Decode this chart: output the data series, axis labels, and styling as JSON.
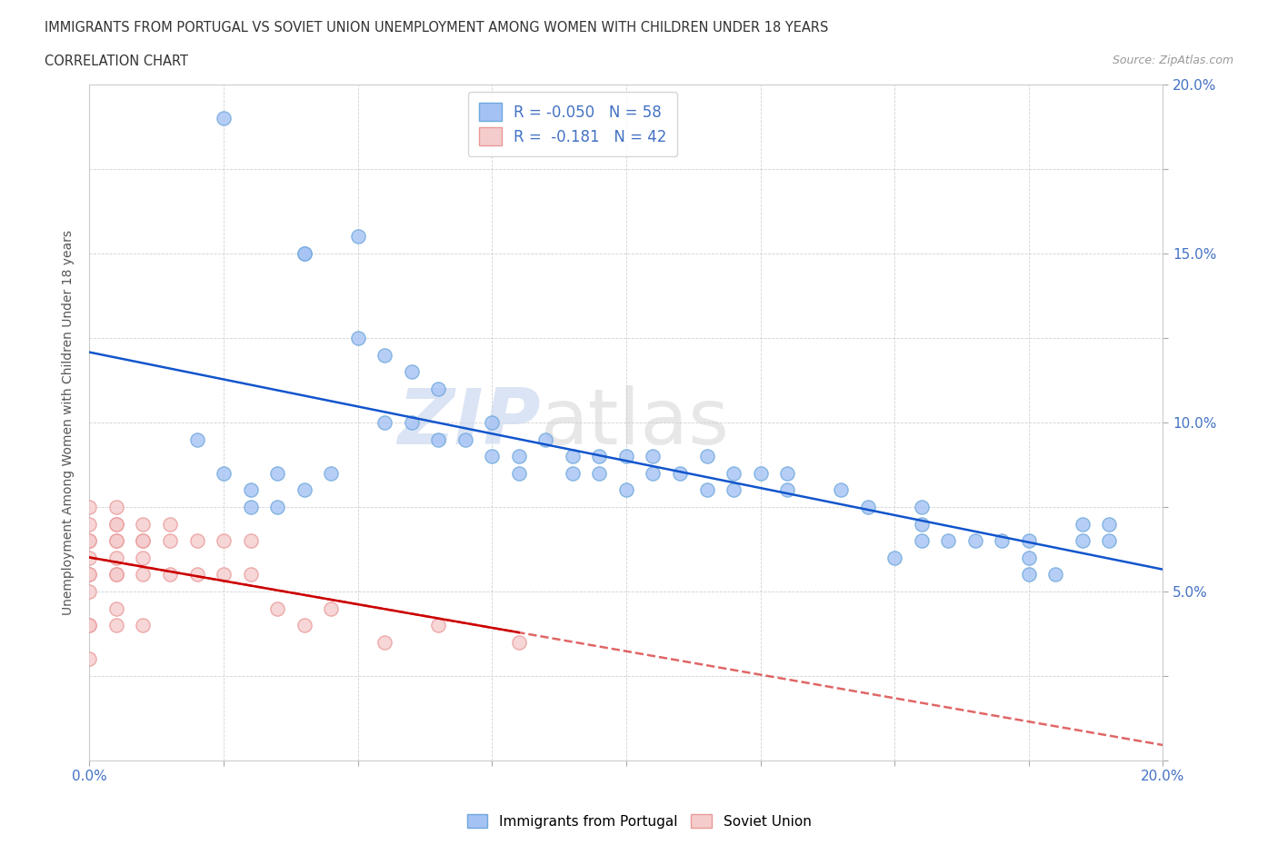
{
  "title_line1": "IMMIGRANTS FROM PORTUGAL VS SOVIET UNION UNEMPLOYMENT AMONG WOMEN WITH CHILDREN UNDER 18 YEARS",
  "title_line2": "CORRELATION CHART",
  "source_text": "Source: ZipAtlas.com",
  "ylabel": "Unemployment Among Women with Children Under 18 years",
  "xlim": [
    0.0,
    0.2
  ],
  "ylim": [
    0.0,
    0.2
  ],
  "x_ticks": [
    0.0,
    0.025,
    0.05,
    0.075,
    0.1,
    0.125,
    0.15,
    0.175,
    0.2
  ],
  "y_ticks": [
    0.0,
    0.025,
    0.05,
    0.075,
    0.1,
    0.125,
    0.15,
    0.175,
    0.2
  ],
  "x_tick_labels": [
    "0.0%",
    "",
    "",
    "",
    "",
    "",
    "",
    "",
    "20.0%"
  ],
  "y_tick_labels_right": [
    "",
    "",
    "5.0%",
    "",
    "10.0%",
    "",
    "15.0%",
    "",
    "20.0%"
  ],
  "portugal_color": "#a4c2f4",
  "portugal_edge": "#6fa8dc",
  "soviet_color": "#f4cccc",
  "soviet_edge": "#ea9999",
  "trendline_portugal_color": "#1155cc",
  "trendline_soviet_color": "#cc0000",
  "trendline_soviet_dash": "dashed",
  "portugal_R": -0.05,
  "portugal_N": 58,
  "soviet_R": -0.181,
  "soviet_N": 42,
  "watermark_zip": "ZIP",
  "watermark_atlas": "atlas",
  "portugal_scatter_x": [
    0.025,
    0.04,
    0.04,
    0.05,
    0.05,
    0.055,
    0.055,
    0.06,
    0.06,
    0.065,
    0.065,
    0.07,
    0.075,
    0.075,
    0.08,
    0.08,
    0.085,
    0.09,
    0.09,
    0.095,
    0.095,
    0.1,
    0.1,
    0.105,
    0.105,
    0.11,
    0.115,
    0.115,
    0.12,
    0.12,
    0.125,
    0.13,
    0.13,
    0.14,
    0.145,
    0.15,
    0.155,
    0.155,
    0.155,
    0.16,
    0.165,
    0.17,
    0.175,
    0.175,
    0.175,
    0.18,
    0.185,
    0.185,
    0.19,
    0.19,
    0.02,
    0.025,
    0.03,
    0.03,
    0.035,
    0.035,
    0.04,
    0.045
  ],
  "portugal_scatter_y": [
    0.19,
    0.15,
    0.15,
    0.125,
    0.155,
    0.1,
    0.12,
    0.1,
    0.115,
    0.095,
    0.11,
    0.095,
    0.09,
    0.1,
    0.085,
    0.09,
    0.095,
    0.085,
    0.09,
    0.085,
    0.09,
    0.08,
    0.09,
    0.085,
    0.09,
    0.085,
    0.08,
    0.09,
    0.085,
    0.08,
    0.085,
    0.085,
    0.08,
    0.08,
    0.075,
    0.06,
    0.065,
    0.07,
    0.075,
    0.065,
    0.065,
    0.065,
    0.055,
    0.06,
    0.065,
    0.055,
    0.065,
    0.07,
    0.065,
    0.07,
    0.095,
    0.085,
    0.075,
    0.08,
    0.085,
    0.075,
    0.08,
    0.085
  ],
  "soviet_scatter_x": [
    0.0,
    0.0,
    0.0,
    0.0,
    0.0,
    0.0,
    0.0,
    0.0,
    0.0,
    0.0,
    0.0,
    0.005,
    0.005,
    0.005,
    0.005,
    0.005,
    0.005,
    0.005,
    0.005,
    0.005,
    0.005,
    0.01,
    0.01,
    0.01,
    0.01,
    0.01,
    0.01,
    0.015,
    0.015,
    0.015,
    0.02,
    0.02,
    0.025,
    0.025,
    0.03,
    0.03,
    0.035,
    0.04,
    0.045,
    0.055,
    0.065,
    0.08
  ],
  "soviet_scatter_y": [
    0.03,
    0.04,
    0.04,
    0.05,
    0.055,
    0.055,
    0.06,
    0.065,
    0.065,
    0.07,
    0.075,
    0.04,
    0.045,
    0.055,
    0.055,
    0.06,
    0.065,
    0.065,
    0.07,
    0.07,
    0.075,
    0.04,
    0.055,
    0.06,
    0.065,
    0.065,
    0.07,
    0.055,
    0.065,
    0.07,
    0.055,
    0.065,
    0.055,
    0.065,
    0.055,
    0.065,
    0.045,
    0.04,
    0.045,
    0.035,
    0.04,
    0.035
  ]
}
